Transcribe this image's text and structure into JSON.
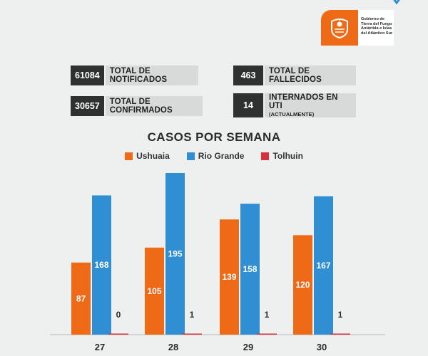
{
  "logo": {
    "text_lines": [
      "Gobierno de",
      "Tierra del Fuego",
      "Antártida e Islas",
      "del Atlántico Sur"
    ],
    "badge_color": "#ee6a17"
  },
  "stats": [
    {
      "value": "61084",
      "label": "TOTAL DE NOTIFICADOS",
      "sub": ""
    },
    {
      "value": "463",
      "label": "TOTAL DE FALLECIDOS",
      "sub": ""
    },
    {
      "value": "30657",
      "label": "TOTAL DE CONFIRMADOS",
      "sub": ""
    },
    {
      "value": "14",
      "label": "INTERNADOS EN UTI",
      "sub": "(ACTUALMENTE)"
    }
  ],
  "chart_data": {
    "type": "bar",
    "title": "CASOS POR SEMANA",
    "categories": [
      "27",
      "28",
      "29",
      "30"
    ],
    "series": [
      {
        "name": "Ushuaia",
        "color": "#ee6a17",
        "values": [
          87,
          105,
          139,
          120
        ]
      },
      {
        "name": "Rio Grande",
        "color": "#2f8fd2",
        "values": [
          168,
          195,
          158,
          167
        ]
      },
      {
        "name": "Tolhuin",
        "color": "#d6313c",
        "values": [
          0,
          1,
          1,
          1
        ]
      }
    ],
    "ylim": [
      0,
      200
    ],
    "grid": false,
    "legend_position": "top"
  }
}
